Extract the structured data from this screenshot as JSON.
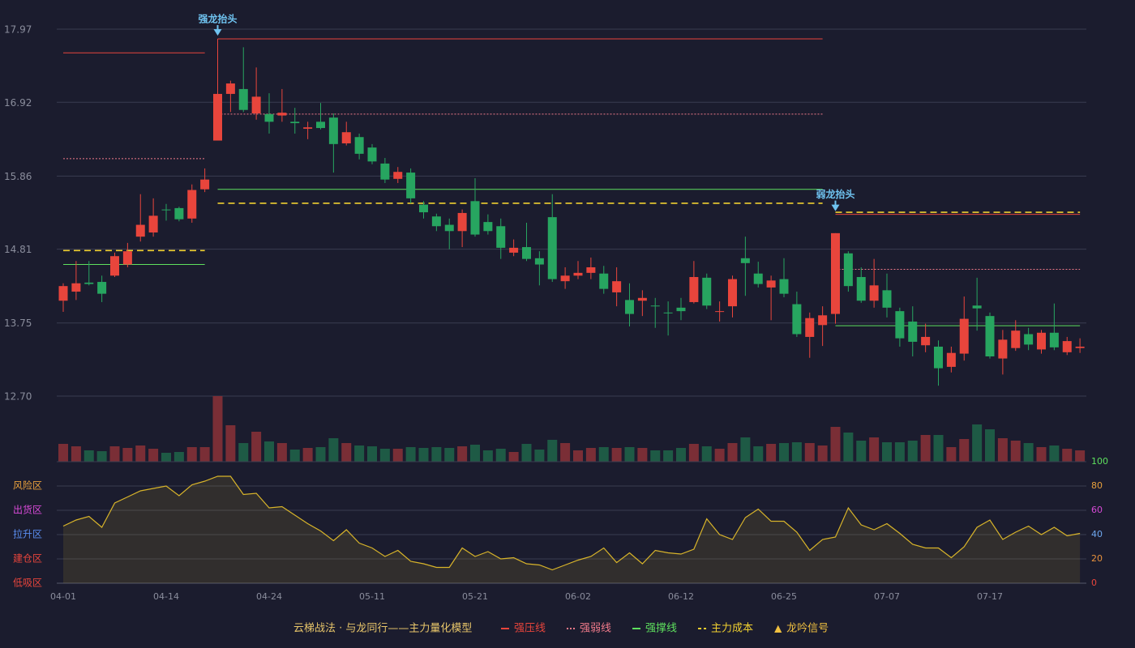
{
  "chart_data": [
    {
      "type": "candlestick",
      "categories": [
        "04-01",
        null,
        null,
        null,
        null,
        null,
        null,
        null,
        "04-14",
        null,
        null,
        null,
        null,
        null,
        null,
        null,
        "04-24",
        null,
        null,
        null,
        null,
        null,
        null,
        null,
        "05-11",
        null,
        null,
        null,
        null,
        null,
        null,
        null,
        "05-21",
        null,
        null,
        null,
        null,
        null,
        null,
        null,
        "06-02",
        null,
        null,
        null,
        null,
        null,
        null,
        null,
        "06-12",
        null,
        null,
        null,
        null,
        null,
        null,
        null,
        "06-25",
        null,
        null,
        null,
        null,
        null,
        null,
        null,
        "07-07",
        null,
        null,
        null,
        null,
        null,
        null,
        null,
        "07-17",
        null,
        null,
        null,
        null,
        null,
        null,
        null
      ],
      "open": [
        14.07,
        14.2,
        14.33,
        14.34,
        14.43,
        14.59,
        14.99,
        15.05,
        15.38,
        15.4,
        15.25,
        15.67,
        16.37,
        17.04,
        17.11,
        16.76,
        16.75,
        16.73,
        16.64,
        16.54,
        16.64,
        16.7,
        16.33,
        16.42,
        16.27,
        16.04,
        15.82,
        15.91,
        15.45,
        15.28,
        15.16,
        15.07,
        15.5,
        15.2,
        15.14,
        14.76,
        14.84,
        14.68,
        15.27,
        14.35,
        14.43,
        14.47,
        14.46,
        14.19,
        14.08,
        14.07,
        14.0,
        13.9,
        13.97,
        14.05,
        14.4,
        13.91,
        13.99,
        14.68,
        14.46,
        14.26,
        14.38,
        14.02,
        13.55,
        13.72,
        13.88,
        14.75,
        14.41,
        14.07,
        14.22,
        13.92,
        13.77,
        13.43,
        13.41,
        13.12,
        13.31,
        14.0,
        13.85,
        13.24,
        13.39,
        13.59,
        13.37,
        13.61,
        13.33,
        13.39
      ],
      "high": [
        14.32,
        14.64,
        14.64,
        14.43,
        14.76,
        14.9,
        15.6,
        15.54,
        15.46,
        15.42,
        15.74,
        15.97,
        17.83,
        17.23,
        17.71,
        17.42,
        17.05,
        17.11,
        16.84,
        16.64,
        16.91,
        16.76,
        16.64,
        16.47,
        16.32,
        16.12,
        15.99,
        15.97,
        15.5,
        15.32,
        15.25,
        15.38,
        15.83,
        15.31,
        15.25,
        14.95,
        15.19,
        14.78,
        15.6,
        14.55,
        14.64,
        14.69,
        14.57,
        14.55,
        14.32,
        14.22,
        14.11,
        14.06,
        14.11,
        14.64,
        14.46,
        14.06,
        14.43,
        14.99,
        14.63,
        14.43,
        14.68,
        14.2,
        13.9,
        13.99,
        15.04,
        14.78,
        14.55,
        14.67,
        14.46,
        13.97,
        13.99,
        13.74,
        13.5,
        13.41,
        14.13,
        14.4,
        13.9,
        13.65,
        13.79,
        13.68,
        13.65,
        14.03,
        13.55,
        13.53
      ],
      "low": [
        13.91,
        14.08,
        14.29,
        14.05,
        14.41,
        14.55,
        14.92,
        14.99,
        15.22,
        15.21,
        15.19,
        15.63,
        16.37,
        16.78,
        16.78,
        16.67,
        16.47,
        16.64,
        16.47,
        16.39,
        16.53,
        15.91,
        16.3,
        16.1,
        16.03,
        15.76,
        15.76,
        15.47,
        15.25,
        15.07,
        14.81,
        14.84,
        14.99,
        15.02,
        14.67,
        14.71,
        14.64,
        14.29,
        14.34,
        14.24,
        14.38,
        14.38,
        14.17,
        13.99,
        13.7,
        13.85,
        13.68,
        13.57,
        13.79,
        14.03,
        13.95,
        13.77,
        13.83,
        14.14,
        14.26,
        13.79,
        14.12,
        13.55,
        13.25,
        13.42,
        13.74,
        14.2,
        14.04,
        13.97,
        13.83,
        13.41,
        13.27,
        13.33,
        12.85,
        13.04,
        13.21,
        13.64,
        13.24,
        13.01,
        13.35,
        13.36,
        13.31,
        13.36,
        13.29,
        13.32
      ],
      "close": [
        14.28,
        14.32,
        14.31,
        14.17,
        14.71,
        14.78,
        15.16,
        15.29,
        15.37,
        15.24,
        15.66,
        15.81,
        17.04,
        17.19,
        16.81,
        17.0,
        16.64,
        16.77,
        16.62,
        16.56,
        16.55,
        16.32,
        16.49,
        16.18,
        16.07,
        15.81,
        15.92,
        15.54,
        15.34,
        15.14,
        15.07,
        15.33,
        15.02,
        15.07,
        14.83,
        14.83,
        14.67,
        14.59,
        14.38,
        14.43,
        14.47,
        14.55,
        14.24,
        14.35,
        13.88,
        14.11,
        13.99,
        13.89,
        13.92,
        14.41,
        14.0,
        13.92,
        14.38,
        14.61,
        14.31,
        14.36,
        14.17,
        13.59,
        13.82,
        13.86,
        15.04,
        14.28,
        14.07,
        14.29,
        13.97,
        13.53,
        13.48,
        13.55,
        13.1,
        13.32,
        13.81,
        13.96,
        13.27,
        13.51,
        13.64,
        13.44,
        13.61,
        13.4,
        13.49,
        13.41
      ],
      "up_color": "#e8453c",
      "down_color": "#27a560",
      "ylim": [
        12.7,
        17.97
      ],
      "yticks": [
        {
          "value": 12.7,
          "label": "12.70"
        },
        {
          "value": 13.75,
          "label": "13.75"
        },
        {
          "value": 14.81,
          "label": "14.81"
        },
        {
          "value": 15.86,
          "label": "15.86"
        },
        {
          "value": 16.92,
          "label": "16.92"
        },
        {
          "value": 17.97,
          "label": "17.97"
        }
      ],
      "grid": true,
      "levels": [
        {
          "name": "强压线",
          "color": "#e8453c",
          "style": "solid",
          "segments": [
            {
              "start": 0,
              "end": 11,
              "value": 17.63
            },
            {
              "start": 12,
              "end": 59,
              "value": 17.83
            },
            {
              "start": 60,
              "end": 79,
              "value": 15.31
            }
          ]
        },
        {
          "name": "强弱线",
          "color": "#f07a8a",
          "style": "dotted",
          "segments": [
            {
              "start": 0,
              "end": 11,
              "value": 16.11
            },
            {
              "start": 12,
              "end": 59,
              "value": 16.75
            },
            {
              "start": 60,
              "end": 79,
              "value": 14.52
            }
          ]
        },
        {
          "name": "强撑线",
          "color": "#5ee05e",
          "style": "solid",
          "segments": [
            {
              "start": 0,
              "end": 11,
              "value": 14.59
            },
            {
              "start": 12,
              "end": 59,
              "value": 15.67
            },
            {
              "start": 60,
              "end": 79,
              "value": 13.71
            }
          ]
        },
        {
          "name": "主力成本",
          "color": "#f0d030",
          "style": "dashed",
          "segments": [
            {
              "start": 0,
              "end": 11,
              "value": 14.79
            },
            {
              "start": 12,
              "end": 59,
              "value": 15.47
            },
            {
              "start": 60,
              "end": 79,
              "value": 15.34
            }
          ]
        }
      ],
      "signals": [
        {
          "index": 12,
          "label": "强龙抬头"
        },
        {
          "index": 60,
          "label": "弱龙抬头"
        }
      ],
      "signal_color": "#6fc3f0"
    },
    {
      "type": "bar",
      "values": [
        22,
        19,
        14,
        13,
        19,
        17,
        20,
        16,
        11,
        12,
        18,
        18,
        81,
        45,
        23,
        37,
        25,
        23,
        15,
        17,
        18,
        29,
        23,
        20,
        19,
        16,
        16,
        18,
        17,
        18,
        17,
        19,
        21,
        14,
        16,
        12,
        22,
        15,
        27,
        23,
        14,
        17,
        18,
        17,
        18,
        17,
        14,
        14,
        17,
        22,
        19,
        16,
        23,
        30,
        19,
        22,
        23,
        24,
        23,
        20,
        43,
        36,
        26,
        30,
        24,
        24,
        26,
        33,
        33,
        18,
        28,
        46,
        40,
        29,
        26,
        23,
        18,
        20,
        16,
        14
      ],
      "up_color": "#7a2e36",
      "down_color": "#1e5a45"
    },
    {
      "type": "line",
      "values": [
        47,
        52,
        55,
        46,
        66,
        71,
        76,
        78,
        80,
        72,
        81,
        84,
        88,
        88,
        73,
        74,
        62,
        63,
        56,
        49,
        43,
        35,
        44,
        33,
        29,
        22,
        27,
        18,
        16,
        13,
        13,
        29,
        22,
        26,
        20,
        21,
        16,
        15,
        11,
        15,
        19,
        22,
        29,
        17,
        25,
        16,
        27,
        25,
        24,
        28,
        53,
        40,
        36,
        54,
        61,
        51,
        51,
        42,
        27,
        36,
        38,
        62,
        48,
        44,
        49,
        41,
        32,
        29,
        29,
        21,
        30,
        46,
        52,
        36,
        42,
        47,
        40,
        46,
        39,
        41
      ],
      "color": "#d8b42a",
      "ylim": [
        0,
        100
      ],
      "yticks": [
        0,
        20,
        40,
        60,
        80,
        100
      ],
      "ytick_colors": [
        "#e8453c",
        "#e8913c",
        "#6fa8f0",
        "#d84ad8",
        "#e8a03c",
        "#5ee05e"
      ],
      "zones": [
        {
          "value": 80,
          "label": "风险区",
          "color": "#e8a03c"
        },
        {
          "value": 60,
          "label": "出货区",
          "color": "#d84ad8"
        },
        {
          "value": 40,
          "label": "拉升区",
          "color": "#5a8ef0"
        },
        {
          "value": 20,
          "label": "建仓区",
          "color": "#e8453c"
        },
        {
          "value": 0,
          "label": "低吸区",
          "color": "#e8453c"
        }
      ]
    }
  ],
  "legend": {
    "title": "云梯战法 · 与龙同行——主力量化模型",
    "title_color": "#e8c66a",
    "signal_name": "龙吟信号",
    "signal_marker": "▲",
    "signal_color": "#f0c040"
  }
}
